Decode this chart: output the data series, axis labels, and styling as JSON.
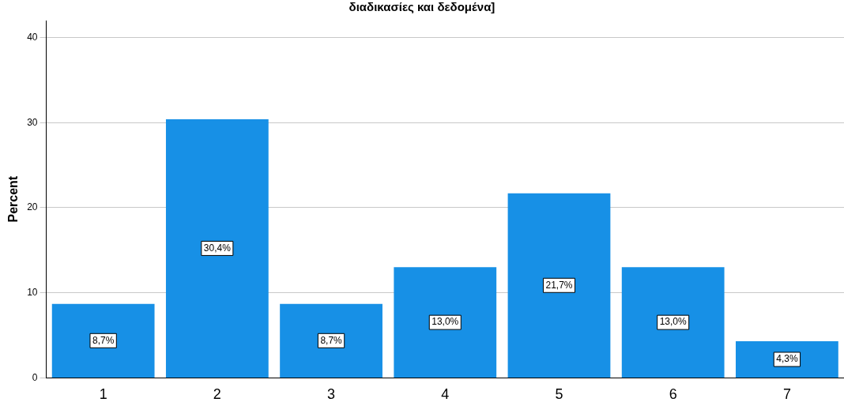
{
  "chart_data": {
    "type": "bar",
    "title": "διαδικασίες και δεδομένα]",
    "ylabel": "Percent",
    "categories": [
      "1",
      "2",
      "3",
      "4",
      "5",
      "6",
      "7"
    ],
    "values": [
      8.7,
      30.4,
      8.7,
      13.0,
      21.7,
      13.0,
      4.3
    ],
    "value_labels": [
      "8,7%",
      "30,4%",
      "8,7%",
      "13,0%",
      "21,7%",
      "13,0%",
      "4,3%"
    ],
    "color": "#1790e6",
    "ylim": [
      0,
      42
    ],
    "yticks": [
      0,
      10,
      20,
      30,
      40
    ],
    "grid": "y",
    "legend": false
  }
}
